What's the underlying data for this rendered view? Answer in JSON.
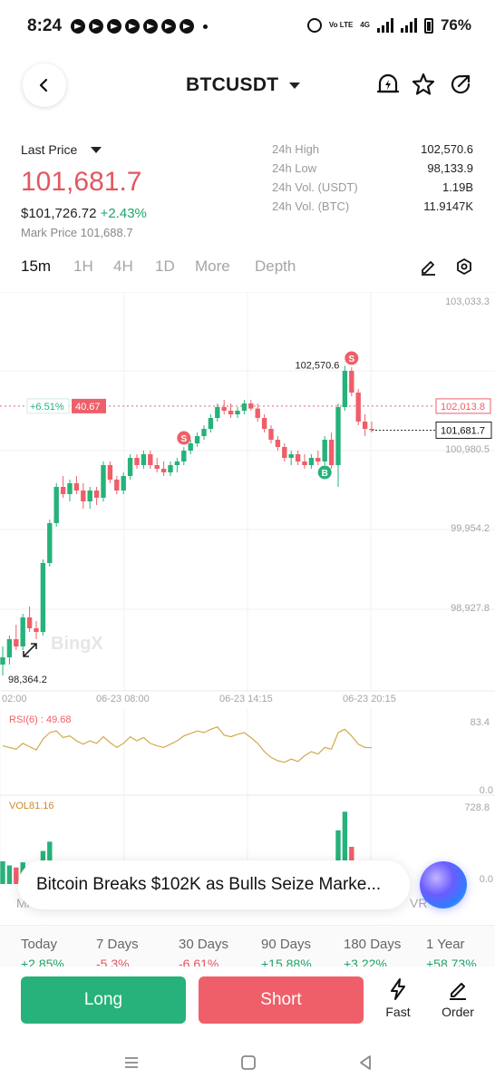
{
  "status_bar": {
    "time": "8:24",
    "volte": "Vo LTE",
    "network": "4G",
    "battery": "76%"
  },
  "header": {
    "pair": "BTCUSDT"
  },
  "price": {
    "last_price_label": "Last Price",
    "last_price": "101,681.7",
    "usd_price": "$101,726.72",
    "change": "+2.43%",
    "mark_price": "Mark Price 101,688.7"
  },
  "stats": [
    {
      "label": "24h High",
      "value": "102,570.6"
    },
    {
      "label": "24h Low",
      "value": "98,133.9"
    },
    {
      "label": "24h Vol. (USDT)",
      "value": "1.19B"
    },
    {
      "label": "24h Vol. (BTC)",
      "value": "11.9147K"
    }
  ],
  "timeframes": [
    "15m",
    "1H",
    "4H",
    "1D",
    "More",
    "Depth"
  ],
  "active_timeframe": "15m",
  "chart_data": {
    "type": "candlestick",
    "symbol": "BTCUSDT",
    "interval": "15m",
    "y_axis_ticks": [
      "103,033.3",
      "100,980.5",
      "99,954.2",
      "98,927.8"
    ],
    "x_axis_ticks": [
      "02:00",
      "06-23 08:00",
      "06-23 14:15",
      "06-23 20:15"
    ],
    "ylim": [
      98400,
      103400
    ],
    "high_label": "102,570.6",
    "low_label": "98,364.2",
    "current_price": 101681.7,
    "current_price_label": "101,681.7",
    "reference_price": 102013.8,
    "reference_price_label": "102,013.8",
    "reference_change": "+6.51%",
    "reference_value": "40.67",
    "watermark": "BingX",
    "markers": [
      {
        "label": "S",
        "index": 27
      },
      {
        "label": "S",
        "index": 52
      },
      {
        "label": "B",
        "index": 48
      }
    ],
    "candles": [
      [
        98450,
        98700,
        98300,
        98550
      ],
      [
        98550,
        98850,
        98450,
        98800
      ],
      [
        98800,
        99000,
        98650,
        98700
      ],
      [
        98700,
        99150,
        98650,
        99100
      ],
      [
        99100,
        99250,
        98900,
        98950
      ],
      [
        98950,
        99050,
        98800,
        98900
      ],
      [
        98900,
        99900,
        98850,
        99850
      ],
      [
        99850,
        100450,
        99800,
        100400
      ],
      [
        100400,
        100950,
        100350,
        100900
      ],
      [
        100900,
        101050,
        100750,
        100800
      ],
      [
        100800,
        101000,
        100700,
        100950
      ],
      [
        100950,
        101050,
        100800,
        100850
      ],
      [
        100850,
        100950,
        100600,
        100700
      ],
      [
        100700,
        100900,
        100600,
        100850
      ],
      [
        100850,
        100900,
        100650,
        100750
      ],
      [
        100750,
        101250,
        100700,
        101200
      ],
      [
        101200,
        101250,
        100950,
        101000
      ],
      [
        101000,
        101050,
        100800,
        100850
      ],
      [
        100850,
        101100,
        100800,
        101050
      ],
      [
        101050,
        101350,
        101000,
        101300
      ],
      [
        101300,
        101350,
        101150,
        101200
      ],
      [
        101200,
        101400,
        101150,
        101350
      ],
      [
        101350,
        101400,
        101150,
        101200
      ],
      [
        101200,
        101300,
        101100,
        101150
      ],
      [
        101150,
        101250,
        101050,
        101100
      ],
      [
        101100,
        101250,
        101050,
        101200
      ],
      [
        101200,
        101300,
        101100,
        101250
      ],
      [
        101250,
        101450,
        101200,
        101400
      ],
      [
        101400,
        101550,
        101350,
        101500
      ],
      [
        101500,
        101650,
        101450,
        101600
      ],
      [
        101600,
        101750,
        101550,
        101700
      ],
      [
        101700,
        101900,
        101650,
        101850
      ],
      [
        101850,
        102050,
        101800,
        102000
      ],
      [
        102000,
        102100,
        101900,
        101950
      ],
      [
        101950,
        102050,
        101850,
        101900
      ],
      [
        101900,
        102000,
        101850,
        101950
      ],
      [
        101950,
        102100,
        101900,
        102050
      ],
      [
        102050,
        102100,
        101950,
        101980
      ],
      [
        101980,
        102050,
        101800,
        101850
      ],
      [
        101850,
        101900,
        101650,
        101700
      ],
      [
        101700,
        101750,
        101500,
        101550
      ],
      [
        101550,
        101600,
        101400,
        101450
      ],
      [
        101450,
        101500,
        101250,
        101300
      ],
      [
        101300,
        101400,
        101200,
        101350
      ],
      [
        101350,
        101400,
        101200,
        101250
      ],
      [
        101250,
        101350,
        101150,
        101200
      ],
      [
        101200,
        101350,
        101150,
        101300
      ],
      [
        101300,
        101400,
        101200,
        101250
      ],
      [
        101250,
        101600,
        101200,
        101550
      ],
      [
        101550,
        101650,
        101150,
        101200
      ],
      [
        101200,
        102050,
        100900,
        102000
      ],
      [
        102000,
        102570,
        101950,
        102500
      ],
      [
        102500,
        102550,
        102150,
        102200
      ],
      [
        102200,
        102250,
        101750,
        101800
      ],
      [
        101800,
        101900,
        101600,
        101700
      ],
      [
        101700,
        101800,
        101650,
        101682
      ]
    ],
    "rsi": {
      "label": "RSI(6) : 49.68",
      "axis_top": "83.4",
      "axis_bottom": "0.0",
      "ylim": [
        0,
        83.4
      ],
      "values": [
        52,
        50,
        48,
        55,
        51,
        47,
        60,
        68,
        70,
        62,
        64,
        58,
        54,
        58,
        55,
        63,
        56,
        50,
        55,
        63,
        58,
        62,
        55,
        52,
        50,
        54,
        58,
        64,
        67,
        70,
        68,
        72,
        75,
        65,
        63,
        66,
        68,
        62,
        55,
        45,
        38,
        34,
        32,
        36,
        33,
        40,
        45,
        42,
        50,
        48,
        68,
        72,
        64,
        54,
        50,
        49.68
      ]
    },
    "volume": {
      "label": "VOL81.16",
      "axis_top": "728.8",
      "axis_bottom": "0.0",
      "ylim": [
        0,
        728.8
      ],
      "values": [
        220,
        180,
        160,
        210,
        140,
        120,
        320,
        410,
        200,
        130,
        110,
        95,
        100,
        90,
        85,
        160,
        120,
        90,
        110,
        150,
        95,
        100,
        90,
        80,
        75,
        85,
        90,
        120,
        140,
        130,
        110,
        150,
        170,
        110,
        95,
        100,
        105,
        90,
        100,
        110,
        95,
        90,
        85,
        80,
        90,
        85,
        80,
        95,
        140,
        160,
        520,
        700,
        360,
        210,
        150,
        81.16
      ]
    }
  },
  "news": {
    "headline": "Bitcoin Breaks $102K as Bulls Seize Marke..."
  },
  "fragments": {
    "ma": "MA",
    "vr": "VR"
  },
  "periods": [
    {
      "label": "Today",
      "value": "+2.85%",
      "tone": "pos"
    },
    {
      "label": "7 Days",
      "value": "-5.3%",
      "tone": "neg"
    },
    {
      "label": "30 Days",
      "value": "-6.61%",
      "tone": "neg"
    },
    {
      "label": "90 Days",
      "value": "+15.88%",
      "tone": "pos"
    },
    {
      "label": "180 Days",
      "value": "+3.22%",
      "tone": "pos"
    },
    {
      "label": "1 Year",
      "value": "+58.73%",
      "tone": "pos"
    }
  ],
  "actions": {
    "long": "Long",
    "short": "Short",
    "fast": "Fast",
    "order": "Order"
  },
  "colors": {
    "up": "#26b27a",
    "down": "#ef5f69",
    "price_red": "#e4575f",
    "rsi": "#d4a84b",
    "vol_label": "#c98a2a"
  }
}
